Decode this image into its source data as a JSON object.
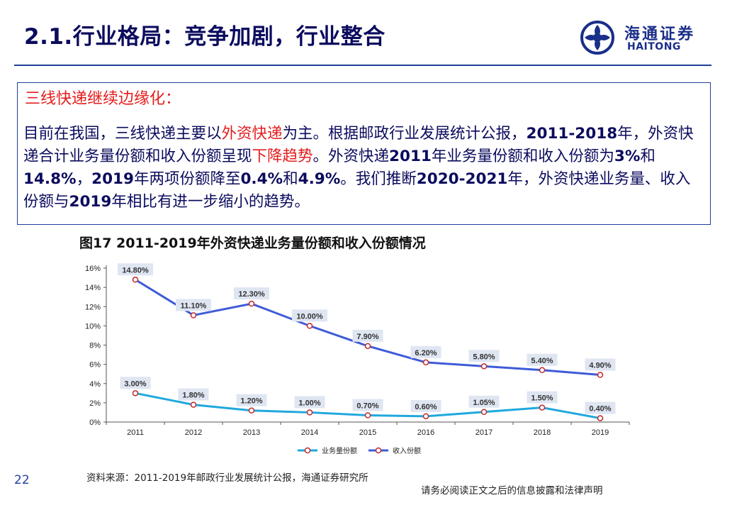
{
  "slide": {
    "title": "2.1.行业格局：竞争加剧，行业整合",
    "page_number": "22"
  },
  "logo": {
    "name_cn": "海通证券",
    "name_en": "HAITONG"
  },
  "callout": {
    "heading": "三线快递继续边缘化：",
    "body": [
      {
        "t": "目前在我国，三线快递主要以",
        "s": "n"
      },
      {
        "t": "外资快递",
        "s": "h"
      },
      {
        "t": "为主。根据邮政行业发展统计公报，",
        "s": "n"
      },
      {
        "t": "2011-2018",
        "s": "b"
      },
      {
        "t": "年，外资快递合计业务量份额和收入份额呈现",
        "s": "n"
      },
      {
        "t": "下降趋势",
        "s": "h"
      },
      {
        "t": "。外资快递",
        "s": "n"
      },
      {
        "t": "2011",
        "s": "b"
      },
      {
        "t": "年业务量份额和收入份额为",
        "s": "n"
      },
      {
        "t": "3%",
        "s": "b"
      },
      {
        "t": "和",
        "s": "n"
      },
      {
        "t": "14.8%",
        "s": "b"
      },
      {
        "t": "，",
        "s": "n"
      },
      {
        "t": "2019",
        "s": "b"
      },
      {
        "t": "年两项份额降至",
        "s": "n"
      },
      {
        "t": "0.4%",
        "s": "b"
      },
      {
        "t": "和",
        "s": "n"
      },
      {
        "t": "4.9%",
        "s": "b"
      },
      {
        "t": "。我们推断",
        "s": "n"
      },
      {
        "t": "2020-2021",
        "s": "b"
      },
      {
        "t": "年，外资快递业务量、收入份额与",
        "s": "n"
      },
      {
        "t": "2019",
        "s": "b"
      },
      {
        "t": "年相比有进一步缩小的趋势。",
        "s": "n"
      }
    ]
  },
  "figure_caption": "图17 2011-2019年外资快递业务量份额和收入份额情况",
  "chart_data": {
    "type": "line",
    "x": [
      "2011",
      "2012",
      "2013",
      "2014",
      "2015",
      "2016",
      "2017",
      "2018",
      "2019"
    ],
    "yticks": [
      "0%",
      "2%",
      "4%",
      "6%",
      "8%",
      "10%",
      "12%",
      "14%",
      "16%"
    ],
    "ylim": [
      0,
      16
    ],
    "grid": false,
    "legend_position": "bottom",
    "series": [
      {
        "name": "业务量份额",
        "color": "#1fa8dd",
        "values": [
          3.0,
          1.8,
          1.2,
          1.0,
          0.7,
          0.6,
          1.05,
          1.5,
          0.4
        ],
        "labels": [
          "3.00%",
          "1.80%",
          "1.20%",
          "1.00%",
          "0.70%",
          "0.60%",
          "1.05%",
          "1.50%",
          "0.40%"
        ]
      },
      {
        "name": "收入份额",
        "color": "#3f5bd8",
        "values": [
          14.8,
          11.1,
          12.3,
          10.0,
          7.9,
          6.2,
          5.8,
          5.4,
          4.9
        ],
        "labels": [
          "14.80%",
          "11.10%",
          "12.30%",
          "10.00%",
          "7.90%",
          "6.20%",
          "5.80%",
          "5.40%",
          "4.90%"
        ]
      }
    ]
  },
  "source_note": "资料来源：2011-2019年邮政行业发展统计公报，海通证券研究所",
  "disclaimer": "请务必阅读正文之后的信息披露和法律声明"
}
